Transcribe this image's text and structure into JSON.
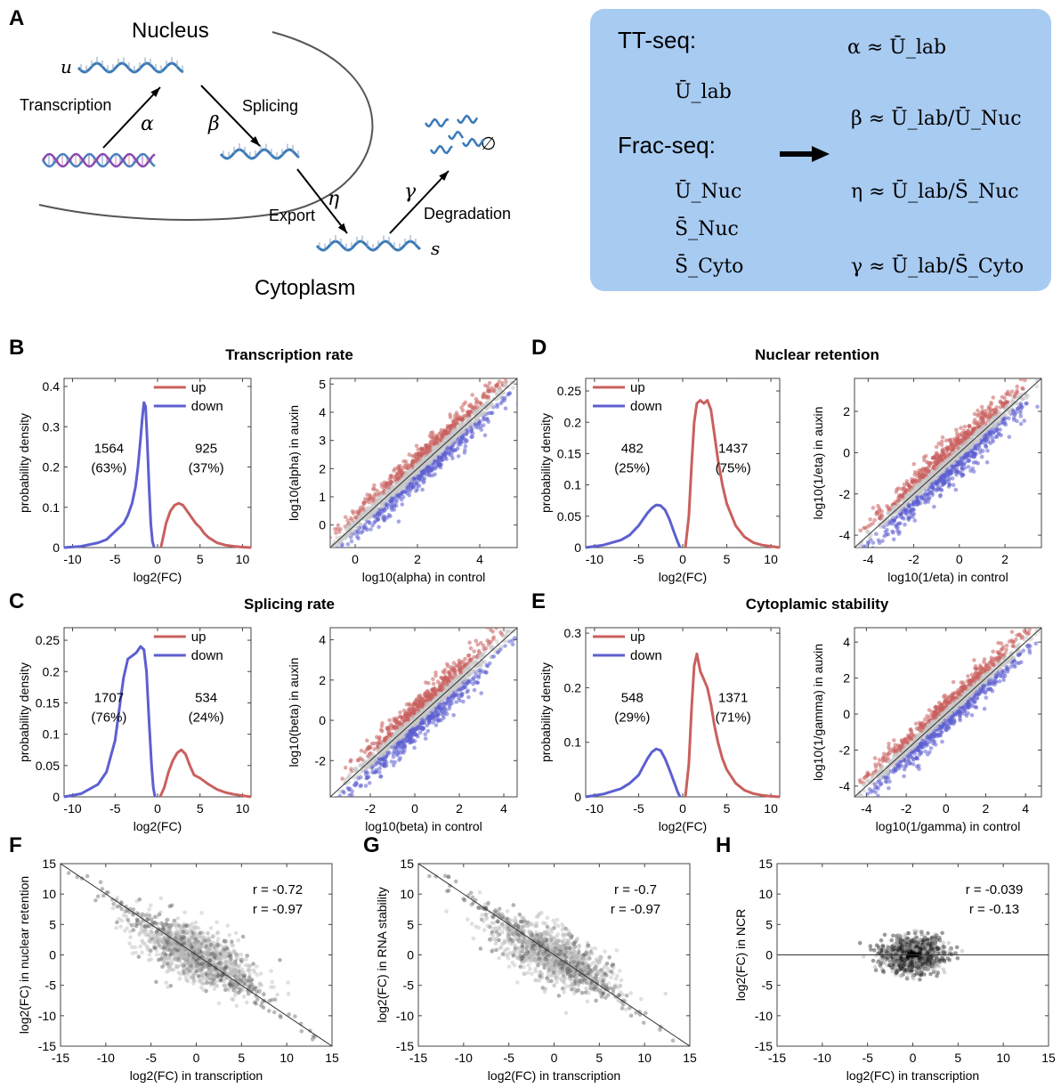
{
  "panel_letters": [
    "A",
    "B",
    "C",
    "D",
    "E",
    "F",
    "G",
    "H"
  ],
  "panel_a": {
    "nucleus": "Nucleus",
    "cytoplasm": "Cytoplasm",
    "transcription": "Transcription",
    "splicing": "Splicing",
    "export": "Export",
    "degradation": "Degradation",
    "u": "u",
    "s": "s",
    "alpha": "α",
    "beta": "β",
    "eta": "η",
    "gamma": "γ",
    "empty": "∅"
  },
  "box": {
    "ttseq": "TT-seq:",
    "fracseq": "Frac-seq:",
    "measures": [
      "Ū_lab",
      "Ū_Nuc",
      "S̄_Nuc",
      "S̄_Cyto"
    ],
    "eq_alpha": "α ≈ Ū_lab",
    "eq_beta": "β ≈ Ū_lab/Ū_Nuc",
    "eq_eta": "η ≈ Ū_lab/S̄_Nuc",
    "eq_gamma": "γ ≈ Ū_lab/S̄_Cyto",
    "color": "#a8cbf2"
  },
  "colors": {
    "up": "#c9605e",
    "down": "#5d5fd0",
    "gray": "#c8c8c8"
  },
  "chart_data": [
    {
      "id": "B-density",
      "type": "line",
      "title": "Transcription rate",
      "xlabel": "log2(FC)",
      "ylabel": "probability density",
      "xlim": [
        -11,
        11
      ],
      "ylim": [
        0,
        0.42
      ],
      "xticks": [
        -10,
        -5,
        0,
        5,
        10
      ],
      "yticks": [
        0,
        0.1,
        0.2,
        0.3,
        0.4
      ],
      "legend": [
        "up",
        "down"
      ],
      "legend_position": "top-center",
      "annotations": [
        {
          "text": "1564",
          "sub": "(63%)",
          "side": "left"
        },
        {
          "text": "925",
          "sub": "(37%)",
          "side": "right"
        }
      ],
      "series": [
        {
          "name": "down",
          "x": [
            -11,
            -9,
            -7,
            -6,
            -5.5,
            -5,
            -4.5,
            -4,
            -3.5,
            -3,
            -2.6,
            -2.3,
            -2,
            -1.8,
            -1.6,
            -1.4,
            -1.2,
            -1,
            -0.8,
            -0.6,
            -0.4
          ],
          "y": [
            0,
            0.003,
            0.012,
            0.02,
            0.03,
            0.04,
            0.05,
            0.06,
            0.08,
            0.11,
            0.15,
            0.2,
            0.27,
            0.32,
            0.36,
            0.35,
            0.26,
            0.15,
            0.06,
            0.015,
            0
          ]
        },
        {
          "name": "up",
          "x": [
            0.4,
            0.7,
            1,
            1.5,
            2,
            2.5,
            3,
            3.5,
            4,
            4.5,
            5,
            5.5,
            6,
            7,
            8,
            9,
            10,
            11
          ],
          "y": [
            0,
            0.03,
            0.06,
            0.09,
            0.105,
            0.11,
            0.105,
            0.09,
            0.075,
            0.06,
            0.05,
            0.035,
            0.025,
            0.012,
            0.006,
            0.003,
            0.001,
            0
          ]
        }
      ]
    },
    {
      "id": "B-scatter",
      "type": "scatter",
      "xlabel": "log10(alpha) in control",
      "ylabel": "log10(alpha) in auxin",
      "xlim": [
        -0.8,
        5.2
      ],
      "ylim": [
        -0.8,
        5.2
      ],
      "xticks": [
        0,
        2,
        4
      ],
      "yticks": [
        0,
        1,
        2,
        3,
        4,
        5
      ],
      "cloud": {
        "x_range": [
          -0.5,
          4.8
        ],
        "slope": 1,
        "spread": 0.55,
        "up_offset": 0.45
      },
      "diagonal": "y=x"
    },
    {
      "id": "C-density",
      "type": "line",
      "title": "Splicing rate",
      "xlabel": "log2(FC)",
      "ylabel": "probability density",
      "xlim": [
        -11,
        11
      ],
      "ylim": [
        0,
        0.27
      ],
      "xticks": [
        -10,
        -5,
        0,
        5,
        10
      ],
      "yticks": [
        0,
        0.05,
        0.1,
        0.15,
        0.2,
        0.25
      ],
      "legend": [
        "up",
        "down"
      ],
      "legend_position": "top-center",
      "annotations": [
        {
          "text": "1707",
          "sub": "(76%)",
          "side": "left"
        },
        {
          "text": "534",
          "sub": "(24%)",
          "side": "right"
        }
      ],
      "series": [
        {
          "name": "down",
          "x": [
            -11,
            -9,
            -7,
            -6,
            -5,
            -4.5,
            -4,
            -3.5,
            -3,
            -2.5,
            -2,
            -1.6,
            -1.3,
            -1,
            -0.7,
            -0.5,
            -0.3
          ],
          "y": [
            0,
            0.005,
            0.02,
            0.04,
            0.09,
            0.14,
            0.19,
            0.22,
            0.225,
            0.23,
            0.24,
            0.235,
            0.2,
            0.12,
            0.05,
            0.015,
            0
          ]
        },
        {
          "name": "up",
          "x": [
            0.3,
            0.8,
            1.3,
            1.8,
            2.3,
            2.8,
            3.3,
            3.8,
            4.3,
            5,
            5.5,
            6,
            7,
            8,
            9,
            10,
            11
          ],
          "y": [
            0,
            0.015,
            0.04,
            0.058,
            0.07,
            0.075,
            0.068,
            0.05,
            0.035,
            0.03,
            0.025,
            0.02,
            0.012,
            0.007,
            0.004,
            0.002,
            0
          ]
        }
      ]
    },
    {
      "id": "C-scatter",
      "type": "scatter",
      "xlabel": "log10(beta) in control",
      "ylabel": "log10(beta) in auxin",
      "xlim": [
        -3.8,
        4.6
      ],
      "ylim": [
        -3.8,
        4.6
      ],
      "xticks": [
        -2,
        0,
        2,
        4
      ],
      "yticks": [
        -2,
        0,
        2,
        4
      ],
      "cloud": {
        "x_range": [
          -2.5,
          3.2
        ],
        "slope": 1,
        "spread": 0.8,
        "up_offset": 0.6
      },
      "diagonal": "y=x"
    },
    {
      "id": "D-density",
      "type": "line",
      "title": "Nuclear retention",
      "xlabel": "log2(FC)",
      "ylabel": "probability density",
      "xlim": [
        -11,
        11
      ],
      "ylim": [
        0,
        0.27
      ],
      "xticks": [
        -10,
        -5,
        0,
        5,
        10
      ],
      "yticks": [
        0,
        0.05,
        0.1,
        0.15,
        0.2,
        0.25
      ],
      "legend": [
        "up",
        "down"
      ],
      "legend_position": "top-left",
      "annotations": [
        {
          "text": "482",
          "sub": "(25%)",
          "side": "left"
        },
        {
          "text": "1437",
          "sub": "(75%)",
          "side": "right"
        }
      ],
      "series": [
        {
          "name": "down",
          "x": [
            -11,
            -9,
            -7,
            -6,
            -5,
            -4.5,
            -4,
            -3.5,
            -3,
            -2.5,
            -2,
            -1.5,
            -1,
            -0.6,
            -0.3
          ],
          "y": [
            0,
            0.004,
            0.012,
            0.02,
            0.035,
            0.045,
            0.055,
            0.063,
            0.068,
            0.067,
            0.06,
            0.045,
            0.025,
            0.01,
            0
          ]
        },
        {
          "name": "up",
          "x": [
            0.3,
            0.7,
            1,
            1.3,
            1.6,
            2,
            2.4,
            2.8,
            3.2,
            3.6,
            4,
            4.5,
            5,
            6,
            7,
            8,
            9,
            10,
            11
          ],
          "y": [
            0,
            0.05,
            0.13,
            0.2,
            0.23,
            0.235,
            0.23,
            0.235,
            0.22,
            0.18,
            0.14,
            0.1,
            0.07,
            0.035,
            0.017,
            0.008,
            0.004,
            0.002,
            0
          ]
        }
      ]
    },
    {
      "id": "D-scatter",
      "type": "scatter",
      "xlabel": "log10(1/eta) in control",
      "ylabel": "log10(1/eta) in auxin",
      "xlim": [
        -4.6,
        3.6
      ],
      "ylim": [
        -4.6,
        3.6
      ],
      "xticks": [
        -4,
        -2,
        0,
        2
      ],
      "yticks": [
        -4,
        -2,
        0,
        2
      ],
      "cloud": {
        "x_range": [
          -3.5,
          2.5
        ],
        "slope": 1,
        "spread": 0.8,
        "up_offset": 0.55
      },
      "diagonal": "y=x"
    },
    {
      "id": "E-density",
      "type": "line",
      "title": "Cytoplamic stability",
      "xlabel": "log2(FC)",
      "ylabel": "probability density",
      "xlim": [
        -11,
        11
      ],
      "ylim": [
        0,
        0.31
      ],
      "xticks": [
        -10,
        -5,
        0,
        5,
        10
      ],
      "yticks": [
        0,
        0.1,
        0.2,
        0.3
      ],
      "legend": [
        "up",
        "down"
      ],
      "legend_position": "top-left",
      "annotations": [
        {
          "text": "548",
          "sub": "(29%)",
          "side": "left"
        },
        {
          "text": "1371",
          "sub": "(71%)",
          "side": "right"
        }
      ],
      "series": [
        {
          "name": "down",
          "x": [
            -11,
            -9,
            -7,
            -6,
            -5,
            -4.5,
            -4,
            -3.5,
            -3,
            -2.5,
            -2,
            -1.5,
            -1,
            -0.6,
            -0.3
          ],
          "y": [
            0,
            0.005,
            0.015,
            0.025,
            0.04,
            0.055,
            0.07,
            0.082,
            0.088,
            0.085,
            0.07,
            0.05,
            0.028,
            0.01,
            0
          ]
        },
        {
          "name": "up",
          "x": [
            0.3,
            0.7,
            1,
            1.3,
            1.6,
            2,
            2.4,
            2.8,
            3.2,
            3.6,
            4,
            4.5,
            5,
            6,
            7,
            8,
            9,
            10,
            11
          ],
          "y": [
            0,
            0.06,
            0.16,
            0.24,
            0.262,
            0.23,
            0.215,
            0.2,
            0.17,
            0.13,
            0.1,
            0.07,
            0.05,
            0.025,
            0.012,
            0.006,
            0.003,
            0.001,
            0
          ]
        }
      ]
    },
    {
      "id": "E-scatter",
      "type": "scatter",
      "xlabel": "log10(1/gamma) in control",
      "ylabel": "log10(1/gamma) in auxin",
      "xlim": [
        -4.6,
        4.8
      ],
      "ylim": [
        -4.6,
        4.8
      ],
      "xticks": [
        -4,
        -2,
        0,
        2,
        4
      ],
      "yticks": [
        -4,
        -2,
        0,
        2,
        4
      ],
      "cloud": {
        "x_range": [
          -3.5,
          3.5
        ],
        "slope": 1,
        "spread": 0.8,
        "up_offset": 0.6
      },
      "diagonal": "y=x"
    },
    {
      "id": "F",
      "type": "scatter",
      "xlabel": "log2(FC) in transcription",
      "ylabel": "log2(FC) in nuclear retention",
      "xlim": [
        -15,
        15
      ],
      "ylim": [
        -15,
        15
      ],
      "xticks": [
        -15,
        -10,
        -5,
        0,
        5,
        10,
        15
      ],
      "yticks": [
        -15,
        -10,
        -5,
        0,
        5,
        10,
        15
      ],
      "annotations": [
        "r = -0.72",
        "r = -0.97"
      ],
      "line": {
        "slope": -1,
        "intercept": 0
      },
      "cloud": {
        "mode": "anticorrelated",
        "x_range": [
          -10,
          10
        ],
        "spread": 2.5
      }
    },
    {
      "id": "G",
      "type": "scatter",
      "xlabel": "log2(FC) in transcription",
      "ylabel": "log2(FC) in RNA stability",
      "xlim": [
        -15,
        15
      ],
      "ylim": [
        -15,
        15
      ],
      "xticks": [
        -15,
        -10,
        -5,
        0,
        5,
        10,
        15
      ],
      "yticks": [
        -15,
        -10,
        -5,
        0,
        5,
        10,
        15
      ],
      "annotations": [
        "r = -0.7",
        "r = -0.97"
      ],
      "line": {
        "slope": -1,
        "intercept": 0
      },
      "cloud": {
        "mode": "anticorrelated",
        "x_range": [
          -10,
          10
        ],
        "spread": 2.5
      }
    },
    {
      "id": "H",
      "type": "scatter",
      "xlabel": "log2(FC) in transcription",
      "ylabel": "log2(FC) in NCR",
      "xlim": [
        -15,
        15
      ],
      "ylim": [
        -15,
        15
      ],
      "xticks": [
        -15,
        -10,
        -5,
        0,
        5,
        10,
        15
      ],
      "yticks": [
        -15,
        -10,
        -5,
        0,
        5,
        10,
        15
      ],
      "annotations": [
        "r = -0.039",
        "r = -0.13"
      ],
      "line": {
        "slope": 0,
        "intercept": 0
      },
      "cloud": {
        "mode": "centered",
        "x_range": [
          -5,
          5
        ],
        "spread": 1.5
      }
    }
  ]
}
